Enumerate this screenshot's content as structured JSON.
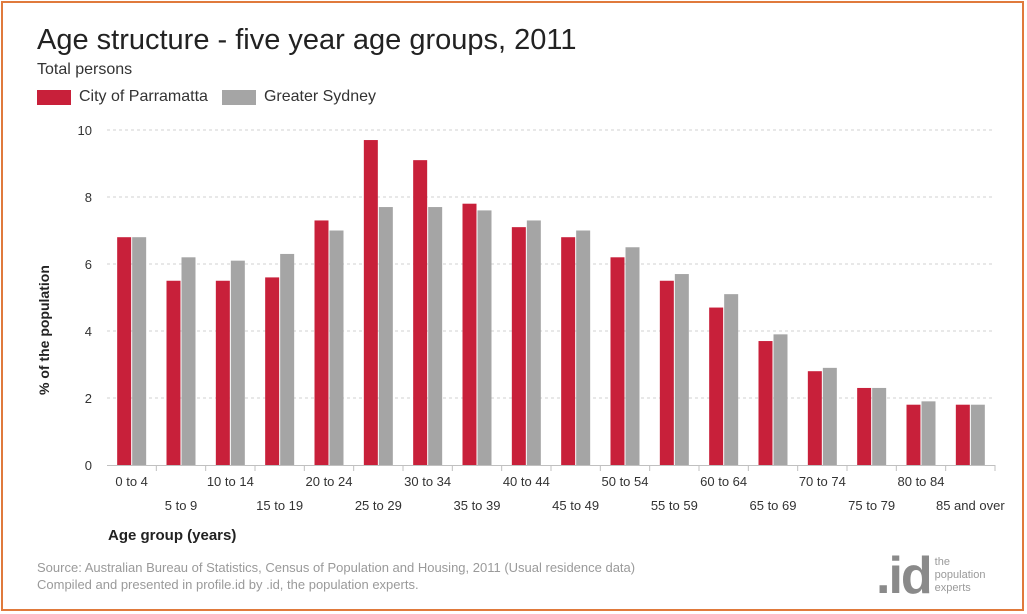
{
  "header": {
    "title": "Age structure - five year age groups, 2011",
    "subtitle": "Total persons"
  },
  "chart_data": {
    "type": "bar",
    "title": "Age structure - five year age groups, 2011",
    "subtitle": "Total persons",
    "xlabel": "Age group (years)",
    "ylabel": "% of the population",
    "ylim": [
      0,
      10
    ],
    "yticks": [
      0,
      2,
      4,
      6,
      8,
      10
    ],
    "grid": true,
    "legend_position": "top-left",
    "categories": [
      "0 to 4",
      "5 to 9",
      "10 to 14",
      "15 to 19",
      "20 to 24",
      "25 to 29",
      "30 to 34",
      "35 to 39",
      "40 to 44",
      "45 to 49",
      "50 to 54",
      "55 to 59",
      "60 to 64",
      "65 to 69",
      "70 to 74",
      "75 to 79",
      "80 to 84",
      "85 and over"
    ],
    "series": [
      {
        "name": "City of Parramatta",
        "color": "#c8203a",
        "values": [
          6.8,
          5.5,
          5.5,
          5.6,
          7.3,
          9.7,
          9.1,
          7.8,
          7.1,
          6.8,
          6.2,
          5.5,
          4.7,
          3.7,
          2.8,
          2.3,
          1.8,
          1.8
        ]
      },
      {
        "name": "Greater Sydney",
        "color": "#a5a5a5",
        "values": [
          6.8,
          6.2,
          6.1,
          6.3,
          7.0,
          7.7,
          7.7,
          7.6,
          7.3,
          7.0,
          6.5,
          5.7,
          5.1,
          3.9,
          2.9,
          2.3,
          1.9,
          1.8
        ]
      }
    ]
  },
  "footer": {
    "source_line1": "Source: Australian Bureau of Statistics, Census of Population and Housing, 2011 (Usual residence data)",
    "source_line2": "Compiled and presented in profile.id by .id, the population experts.",
    "logo_mark": ".id",
    "logo_line1": "the",
    "logo_line2": "population",
    "logo_line3": "experts"
  },
  "colors": {
    "border": "#e07a3c",
    "grid": "#d0d0d0"
  }
}
